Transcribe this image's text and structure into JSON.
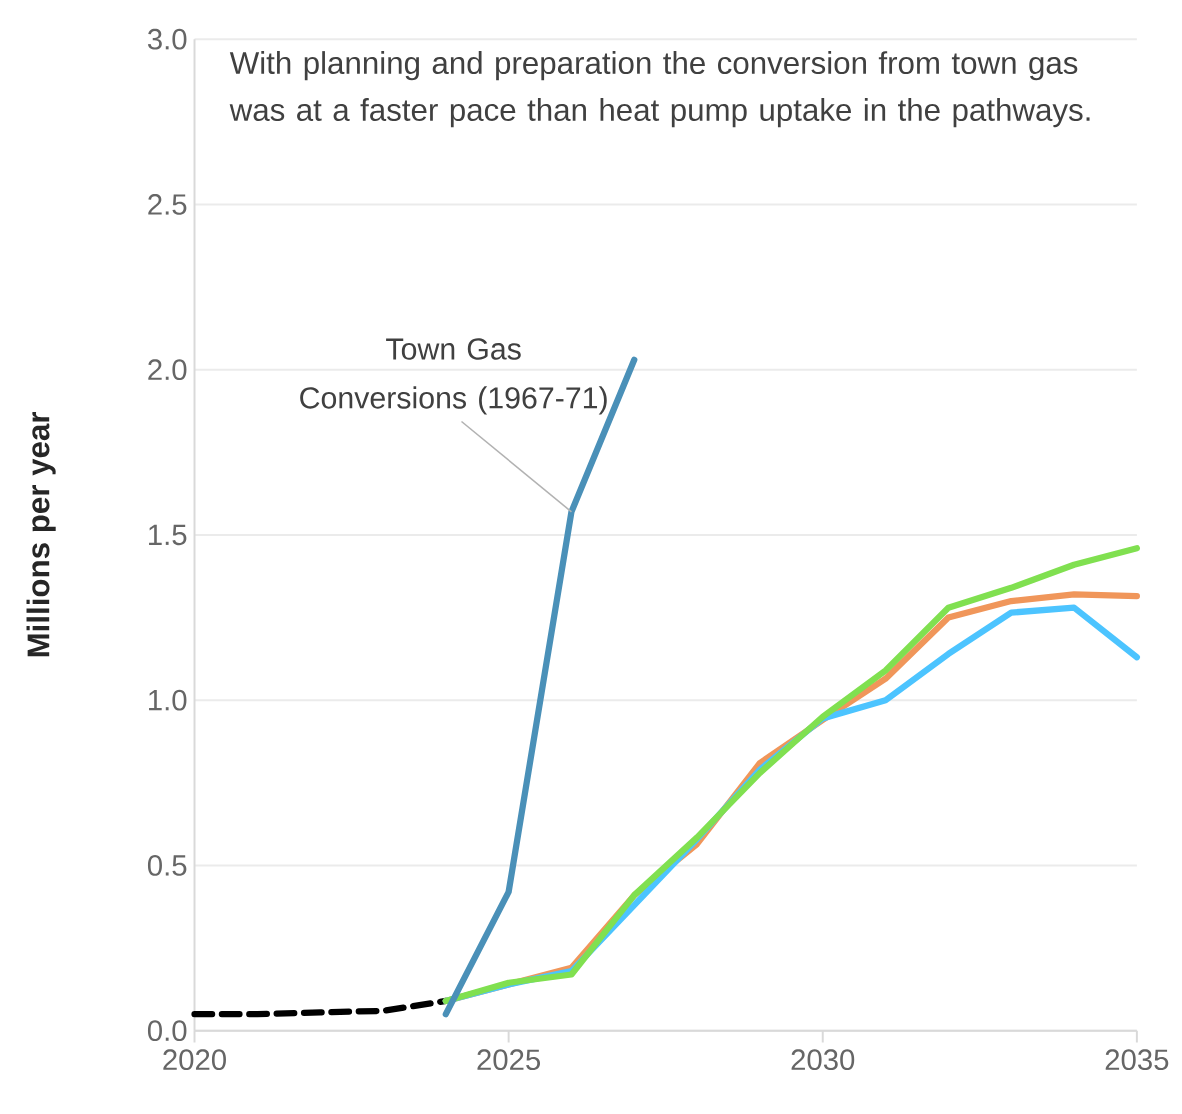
{
  "chart_data": {
    "type": "line",
    "ylabel": "Millions per year",
    "annotations": [
      "With planning and preparation the conversion from town gas was at a faster pace than heat pump uptake in the pathways.",
      {
        "text": "Town Gas Conversions (1967-71)",
        "x": 2026,
        "y": 1.57
      }
    ],
    "xlim": [
      2020,
      2035
    ],
    "xticks": [
      2020,
      2025,
      2030,
      2035
    ],
    "ylim": [
      0,
      3
    ],
    "yticks": [
      {
        "value": 0,
        "label": "0.0"
      },
      {
        "value": 0.5,
        "label": "0.5"
      },
      {
        "value": 1,
        "label": "1.0"
      },
      {
        "value": 1.5,
        "label": "1.5"
      },
      {
        "value": 2,
        "label": "2.0"
      },
      {
        "value": 2.5,
        "label": "2.5"
      },
      {
        "value": 3,
        "label": "3.0"
      }
    ],
    "grid": "y",
    "marker": "none",
    "series": [
      {
        "color": "#000000",
        "line_style": "dashed",
        "x": [
          2020,
          2021,
          2022,
          2023,
          2024
        ],
        "values": [
          0.05,
          0.05,
          0.055,
          0.06,
          0.09
        ]
      },
      {
        "color": "#f0965a",
        "x": [
          2024,
          2025,
          2026,
          2027,
          2028,
          2029,
          2030,
          2031,
          2032,
          2033,
          2034,
          2035
        ],
        "values": [
          0.09,
          0.14,
          0.19,
          0.41,
          0.565,
          0.81,
          0.94,
          1.065,
          1.25,
          1.3,
          1.32,
          1.315
        ]
      },
      {
        "color": "#4cc4ff",
        "x": [
          2024,
          2025,
          2026,
          2027,
          2028,
          2029,
          2030,
          2031,
          2032,
          2033,
          2034,
          2035
        ],
        "values": [
          0.09,
          0.14,
          0.18,
          null,
          0.58,
          0.79,
          0.945,
          1.0,
          1.14,
          1.265,
          1.28,
          1.13
        ]
      },
      {
        "color": "#80e050",
        "x": [
          2024,
          2025,
          2026,
          2027,
          2028,
          2029,
          2030,
          2031,
          2032,
          2033,
          2034,
          2035
        ],
        "values": [
          0.09,
          0.145,
          0.17,
          0.41,
          0.585,
          0.78,
          0.95,
          1.09,
          1.28,
          1.34,
          1.41,
          1.46
        ]
      },
      {
        "color": "#4a90b8",
        "x": [
          2024,
          2025,
          2026,
          2027
        ],
        "values": [
          0.05,
          0.42,
          1.57,
          2.03
        ]
      }
    ]
  }
}
